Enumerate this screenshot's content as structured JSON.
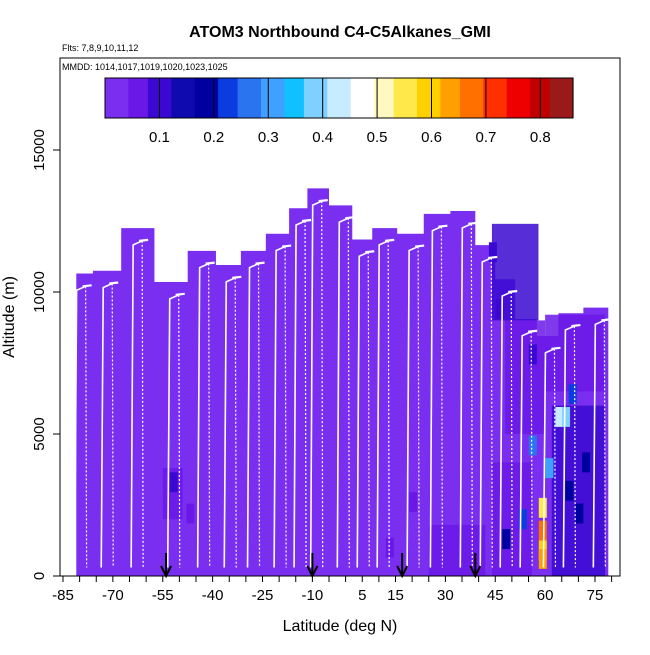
{
  "chart_data": {
    "type": "heatmap",
    "title": "ATOM3 Northbound C4-C5Alkanes_GMI",
    "flights_text": "Flts: 7,8,9,10,11,12",
    "dates_text": "MMDD: 1014,1017,1019,1020,1023,1025",
    "xlabel": "Latitude (deg N)",
    "ylabel": "Altitude (m)",
    "xlim": [
      -87,
      84
    ],
    "ylim": [
      0,
      18000
    ],
    "x_ticks": [
      "-85",
      "-70",
      "-55",
      "-40",
      "-25",
      "-10",
      "5",
      "15",
      "30",
      "45",
      "60",
      "75"
    ],
    "x_tick_values": [
      -85,
      -70,
      -55,
      -40,
      -25,
      -10,
      5,
      15,
      30,
      45,
      60,
      75
    ],
    "y_ticks": [
      "0",
      "5000",
      "10000",
      "15000"
    ],
    "y_tick_values": [
      0,
      5000,
      10000,
      15000
    ],
    "colorbar": {
      "range": [
        0.0,
        0.86
      ],
      "ticks": [
        "0.1",
        "0.2",
        "0.3",
        "0.4",
        "0.5",
        "0.6",
        "0.7",
        "0.8"
      ],
      "tick_values": [
        0.1,
        0.2,
        0.3,
        0.4,
        0.5,
        0.6,
        0.7,
        0.8
      ],
      "colors": [
        "#7a2ff0",
        "#6a18e8",
        "#3a08d0",
        "#0f0ab0",
        "#0000a0",
        "#0a3ce0",
        "#2a74f0",
        "#40a0ff",
        "#10c0ff",
        "#7fd0ff",
        "#c8ecff",
        "#ffffff",
        "#fff8c0",
        "#ffe84a",
        "#ffd000",
        "#ffa000",
        "#ff7000",
        "#ff3000",
        "#ee0000",
        "#c00000",
        "#9a1a1a"
      ]
    },
    "background_value": 0.03,
    "profile_tops": [
      {
        "lat": -80,
        "alt": 10200
      },
      {
        "lat": -72,
        "alt": 10300
      },
      {
        "lat": -63,
        "alt": 11800
      },
      {
        "lat": -52,
        "alt": 9900
      },
      {
        "lat": -43,
        "alt": 11000
      },
      {
        "lat": -35,
        "alt": 10500
      },
      {
        "lat": -28,
        "alt": 11000
      },
      {
        "lat": -20,
        "alt": 11600
      },
      {
        "lat": -14,
        "alt": 12500
      },
      {
        "lat": -9,
        "alt": 13200
      },
      {
        "lat": -1,
        "alt": 12600
      },
      {
        "lat": 5,
        "alt": 11400
      },
      {
        "lat": 11,
        "alt": 11800
      },
      {
        "lat": 20,
        "alt": 11600
      },
      {
        "lat": 27,
        "alt": 12300
      },
      {
        "lat": 36,
        "alt": 12400
      },
      {
        "lat": 42,
        "alt": 11200
      },
      {
        "lat": 48,
        "alt": 10000
      },
      {
        "lat": 54,
        "alt": 8600
      },
      {
        "lat": 61,
        "alt": 8000
      },
      {
        "lat": 67,
        "alt": 8800
      },
      {
        "lat": 76,
        "alt": 9000
      }
    ],
    "enhanced_cells": [
      {
        "lat": 56,
        "alt": 4600,
        "value": 0.28
      },
      {
        "lat": 64,
        "alt": 5600,
        "value": 0.42
      },
      {
        "lat": 66,
        "alt": 5600,
        "value": 0.38
      },
      {
        "lat": 68,
        "alt": 6400,
        "value": 0.22
      },
      {
        "lat": 61,
        "alt": 3800,
        "value": 0.3
      },
      {
        "lat": 59,
        "alt": 2400,
        "value": 0.55
      },
      {
        "lat": 59,
        "alt": 1600,
        "value": 0.68
      },
      {
        "lat": 59,
        "alt": 900,
        "value": 0.6
      },
      {
        "lat": 59,
        "alt": 600,
        "value": 0.63
      },
      {
        "lat": 53,
        "alt": 2000,
        "value": 0.24
      },
      {
        "lat": 48,
        "alt": 1300,
        "value": 0.2
      },
      {
        "lat": 67,
        "alt": 3000,
        "value": 0.18
      },
      {
        "lat": 70,
        "alt": 2200,
        "value": 0.17
      },
      {
        "lat": 72,
        "alt": 4000,
        "value": 0.2
      },
      {
        "lat": 56,
        "alt": 7800,
        "value": 0.12
      },
      {
        "lat": 44,
        "alt": 11400,
        "value": 0.1
      },
      {
        "lat": 46,
        "alt": 9400,
        "value": 0.1
      },
      {
        "lat": -52,
        "alt": 3300,
        "value": 0.1
      },
      {
        "lat": -47,
        "alt": 2200,
        "value": 0.08
      },
      {
        "lat": 13,
        "alt": 1000,
        "value": 0.08
      },
      {
        "lat": 20,
        "alt": 2600,
        "value": 0.07
      }
    ],
    "arrow_lats": [
      -54,
      -10,
      17,
      39
    ]
  }
}
